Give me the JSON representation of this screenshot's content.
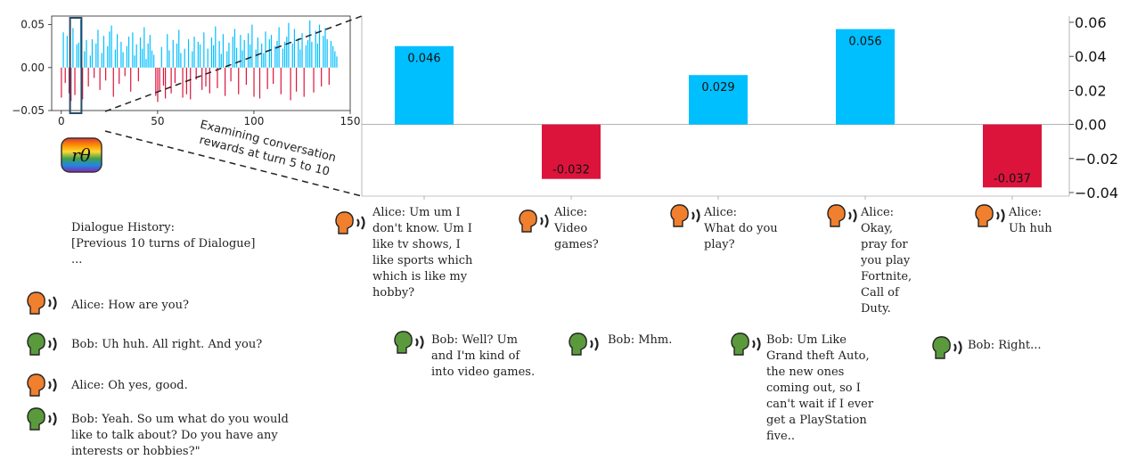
{
  "chart_data": [
    {
      "type": "bar",
      "title": "",
      "xlabel": "",
      "ylabel": "",
      "xlim": [
        -5,
        150
      ],
      "ylim": [
        -0.05,
        0.06
      ],
      "x_ticks": [
        "0",
        "50",
        "100",
        "150"
      ],
      "y_ticks": [
        "0.05",
        "0.00",
        "−0.05"
      ],
      "highlight_turns": [
        5,
        10
      ],
      "positive_color": "#00bfff",
      "negative_color": "#dc143c",
      "values": [
        -0.035,
        0.041,
        -0.018,
        0.037,
        -0.03,
        -0.039,
        0.046,
        -0.032,
        0.027,
        0.029,
        0.056,
        -0.037,
        0.019,
        0.032,
        -0.022,
        0.014,
        0.033,
        -0.012,
        0.028,
        0.044,
        -0.026,
        0.017,
        0.037,
        -0.015,
        0.025,
        0.042,
        0.049,
        -0.034,
        0.021,
        0.039,
        -0.019,
        0.03,
        0.018,
        -0.01,
        0.025,
        0.036,
        -0.028,
        0.041,
        0.014,
        0.027,
        -0.016,
        0.035,
        0.022,
        0.047,
        0.01,
        0.028,
        0.038,
        0.02,
        0.015,
        -0.033,
        -0.04,
        -0.027,
        0.024,
        -0.021,
        -0.036,
        0.039,
        0.02,
        -0.03,
        0.032,
        -0.018,
        0.028,
        0.044,
        0.017,
        -0.035,
        0.022,
        -0.031,
        0.033,
        -0.037,
        0.019,
        0.036,
        -0.014,
        0.03,
        0.027,
        -0.026,
        0.041,
        -0.022,
        0.022,
        -0.03,
        0.035,
        0.026,
        0.048,
        -0.024,
        0.031,
        0.016,
        0.039,
        -0.033,
        0.019,
        0.029,
        -0.016,
        0.036,
        0.045,
        0.023,
        -0.031,
        0.038,
        0.02,
        0.032,
        -0.02,
        0.04,
        0.027,
        0.05,
        -0.034,
        0.021,
        0.035,
        -0.036,
        0.028,
        0.017,
        0.042,
        -0.025,
        0.033,
        0.038,
        -0.019,
        0.025,
        0.031,
        0.047,
        -0.031,
        0.022,
        0.03,
        0.036,
        0.052,
        -0.038,
        0.028,
        0.045,
        -0.028,
        0.034,
        0.021,
        0.04,
        -0.034,
        0.026,
        0.032,
        0.055,
        0.03,
        -0.029,
        0.043,
        0.028,
        0.05,
        -0.022,
        0.037,
        0.046,
        0.033,
        -0.02,
        0.031,
        0.025,
        0.019,
        0.013
      ]
    },
    {
      "type": "bar",
      "title": "",
      "xlabel": "",
      "ylabel": "",
      "ylim": [
        -0.04,
        0.06
      ],
      "y_ticks": [
        "0.06",
        "0.04",
        "0.02",
        "0.00",
        "−0.02",
        "−0.04"
      ],
      "values": [
        0.046,
        -0.032,
        0.029,
        0.056,
        -0.037
      ],
      "data_labels": [
        "0.046",
        "-0.032",
        "0.029",
        "0.056",
        "-0.037"
      ],
      "positive_color": "#00bfff",
      "negative_color": "#dc143c"
    }
  ],
  "icon": {
    "name": "reward-model-icon",
    "label": "rθ"
  },
  "annotation": [
    "Examining conversation",
    "rewards at turn 5 to 10"
  ],
  "history": {
    "title": "Dialogue History:",
    "note": "[Previous 10 turns of Dialogue]",
    "ellipsis": "...",
    "turns": [
      {
        "speaker": "alice",
        "text": "Alice: How are you?"
      },
      {
        "speaker": "bob",
        "text": "Bob: Uh huh. All right. And you?"
      },
      {
        "speaker": "alice",
        "text": "Alice: Oh yes, good."
      },
      {
        "speaker": "bob",
        "text": "Bob: Yeah. So um what do you would\nlike to talk about? Do you have any\ninterests or hobbies?\""
      }
    ]
  },
  "examined_turns": [
    {
      "speaker": "alice",
      "text": "Alice: Um um I\ndon't know. Um I\nlike tv shows, I\nlike sports which\nwhich is like my\nhobby?"
    },
    {
      "speaker": "bob",
      "text": "Bob: Well? Um\nand I'm kind of\ninto video games."
    },
    {
      "speaker": "alice",
      "text": "Alice:\nVideo\ngames?"
    },
    {
      "speaker": "bob",
      "text": "Bob: Mhm."
    },
    {
      "speaker": "alice",
      "text": "Alice:\nWhat do you\nplay?"
    },
    {
      "speaker": "bob",
      "text": "Bob: Um Like\nGrand theft Auto,\nthe new ones\ncoming out, so I\ncan't wait if I ever\nget a PlayStation\nfive.."
    },
    {
      "speaker": "alice",
      "text": "Alice:\nOkay,\npray for\nyou play\nFortnite,\nCall of\nDuty."
    },
    {
      "speaker": "bob",
      "text": "Bob: Right..."
    },
    {
      "speaker": "alice",
      "text": "Alice:\nUh huh"
    }
  ],
  "speaker_colors": {
    "alice": "#f07f2e",
    "bob": "#5a9a3c"
  }
}
